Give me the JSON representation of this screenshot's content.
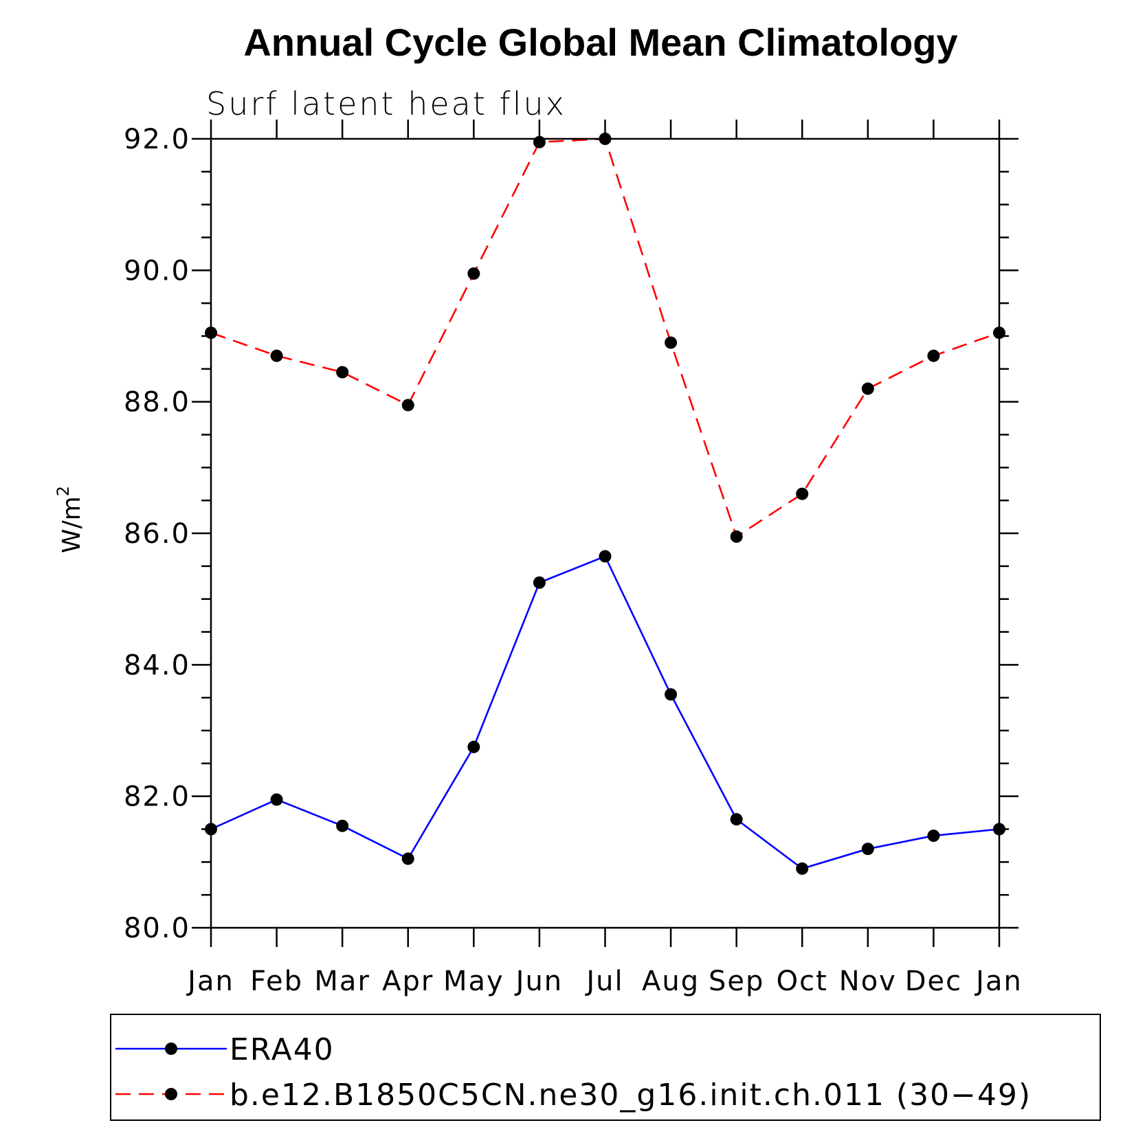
{
  "chart_data": {
    "type": "line",
    "title": "Annual Cycle Global Mean Climatology",
    "subtitle": "Surf latent heat flux",
    "ylabel": "W/m",
    "ylabel_superscript": "2",
    "xlabel": "",
    "categories": [
      "Jan",
      "Feb",
      "Mar",
      "Apr",
      "May",
      "Jun",
      "Jul",
      "Aug",
      "Sep",
      "Oct",
      "Nov",
      "Dec",
      "Jan"
    ],
    "ylim": [
      80.0,
      92.0
    ],
    "yticks": [
      "80.0",
      "82.0",
      "84.0",
      "86.0",
      "88.0",
      "90.0",
      "92.0"
    ],
    "ytick_values": [
      80,
      82,
      84,
      86,
      88,
      90,
      92
    ],
    "grid": false,
    "legend_position": "bottom",
    "series": [
      {
        "name": "ERA40",
        "color": "#0000ff",
        "style": "solid",
        "marker": "circle",
        "values": [
          81.5,
          81.95,
          81.55,
          81.05,
          82.75,
          85.25,
          85.65,
          83.55,
          81.65,
          80.9,
          81.2,
          81.4,
          81.5
        ]
      },
      {
        "name": "b.e12.B1850C5CN.ne30_g16.init.ch.011 (30−49)",
        "color": "#ff0000",
        "style": "dashed",
        "marker": "circle",
        "values": [
          89.05,
          88.7,
          88.45,
          87.95,
          89.95,
          91.95,
          92.0,
          88.9,
          85.95,
          86.6,
          88.2,
          88.7,
          89.05
        ]
      }
    ]
  }
}
